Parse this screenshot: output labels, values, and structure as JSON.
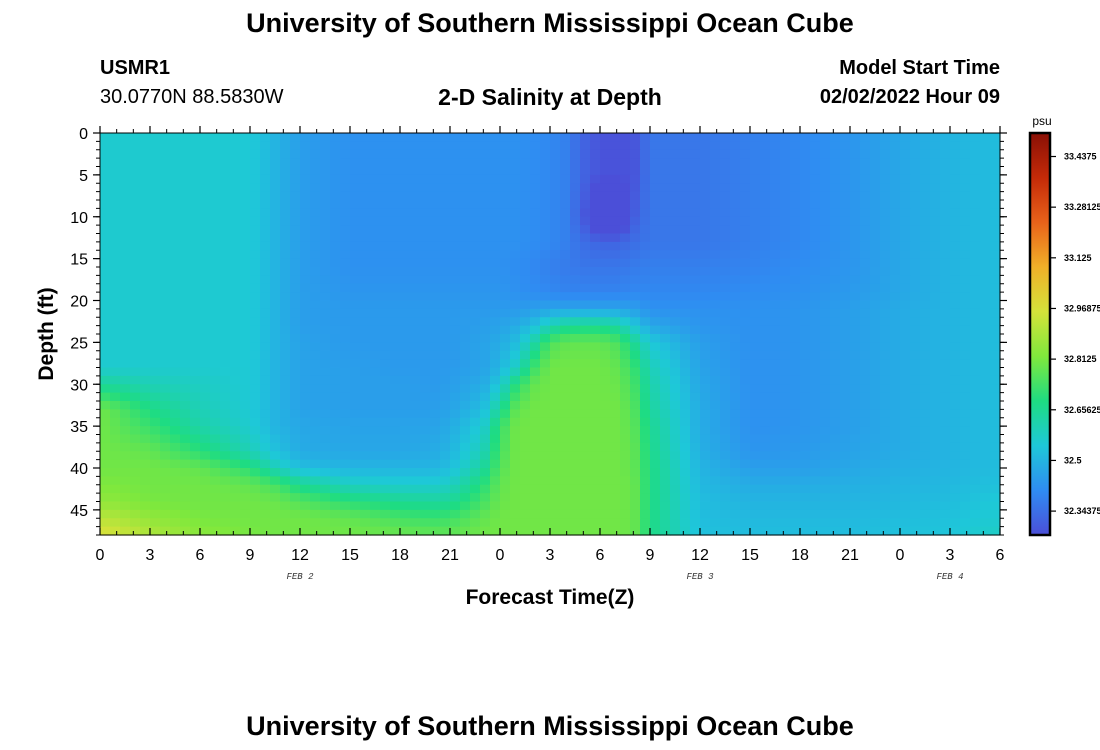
{
  "page_title": "University of Southern Mississippi Ocean Cube",
  "station": {
    "name": "USMR1",
    "coords": "30.0770N  88.5830W"
  },
  "model_start": {
    "label": "Model Start Time",
    "value": "02/02/2022 Hour 09"
  },
  "chart_data": {
    "type": "heatmap",
    "title": "2-D Salinity at Depth",
    "xlabel": "Forecast Time(Z)",
    "ylabel": "Depth (ft)",
    "x_tick_labels": [
      "0",
      "3",
      "6",
      "9",
      "12",
      "15",
      "18",
      "21",
      "0",
      "3",
      "6",
      "9",
      "12",
      "15",
      "18",
      "21",
      "0",
      "3",
      "6"
    ],
    "x_range_hours": [
      0,
      54
    ],
    "date_labels": [
      {
        "text": "FEB 2",
        "hour": 12
      },
      {
        "text": "FEB 3",
        "hour": 36
      },
      {
        "text": "FEB 4",
        "hour": 51
      }
    ],
    "y_ticks": [
      0,
      5,
      10,
      15,
      20,
      25,
      30,
      35,
      40,
      45
    ],
    "y_range": [
      0,
      48
    ],
    "y_inverted": true,
    "colorbar": {
      "unit": "psu",
      "range": [
        32.27,
        33.51
      ],
      "tick_values": [
        33.4375,
        33.28125,
        33.125,
        32.96875,
        32.8125,
        32.65625,
        32.5,
        32.34375
      ],
      "tick_labels": [
        "33.4375",
        "33.28125",
        "33.125",
        "32.96875",
        "32.8125",
        "32.65625",
        "32.5",
        "32.34375"
      ]
    },
    "palette": [
      "#4b4fd8",
      "#2f8cf2",
      "#1ec8d8",
      "#1edc82",
      "#80e83c",
      "#d4e23a",
      "#f0b028",
      "#e8621a",
      "#c42a08",
      "#8a1006"
    ],
    "anchors": {
      "hours": [
        0,
        3,
        6,
        9,
        10.5,
        12,
        15,
        18,
        20,
        21,
        23,
        24,
        25,
        26,
        27,
        28,
        29,
        30,
        31,
        32,
        33,
        36,
        39,
        42,
        45,
        48,
        51,
        54
      ],
      "depths": [
        0,
        5,
        10,
        13,
        16,
        19,
        21,
        23,
        25,
        28,
        30,
        33,
        35,
        38,
        40,
        42,
        44,
        46,
        48
      ],
      "salinity": [
        [
          32.56,
          32.56,
          32.56,
          32.55,
          32.5,
          32.45,
          32.42,
          32.42,
          32.42,
          32.42,
          32.42,
          32.42,
          32.42,
          32.41,
          32.4,
          32.38,
          32.32,
          32.28,
          32.28,
          32.28,
          32.36,
          32.36,
          32.38,
          32.4,
          32.43,
          32.47,
          32.5,
          32.52
        ],
        [
          32.56,
          32.56,
          32.56,
          32.55,
          32.5,
          32.45,
          32.42,
          32.42,
          32.42,
          32.42,
          32.42,
          32.42,
          32.42,
          32.41,
          32.4,
          32.38,
          32.32,
          32.28,
          32.28,
          32.28,
          32.36,
          32.36,
          32.38,
          32.4,
          32.43,
          32.47,
          32.5,
          32.52
        ],
        [
          32.56,
          32.56,
          32.56,
          32.55,
          32.5,
          32.45,
          32.42,
          32.42,
          32.42,
          32.42,
          32.42,
          32.42,
          32.42,
          32.41,
          32.4,
          32.38,
          32.3,
          32.15,
          32.15,
          32.3,
          32.36,
          32.36,
          32.38,
          32.4,
          32.43,
          32.47,
          32.5,
          32.52
        ],
        [
          32.56,
          32.56,
          32.56,
          32.55,
          32.5,
          32.45,
          32.42,
          32.42,
          32.42,
          32.42,
          32.42,
          32.42,
          32.42,
          32.41,
          32.4,
          32.38,
          32.34,
          32.32,
          32.32,
          32.34,
          32.36,
          32.36,
          32.38,
          32.4,
          32.43,
          32.47,
          32.5,
          32.52
        ],
        [
          32.56,
          32.56,
          32.56,
          32.55,
          32.5,
          32.45,
          32.42,
          32.42,
          32.42,
          32.42,
          32.42,
          32.42,
          32.41,
          32.4,
          32.38,
          32.37,
          32.36,
          32.36,
          32.36,
          32.37,
          32.38,
          32.38,
          32.39,
          32.41,
          32.43,
          32.47,
          32.5,
          32.52
        ],
        [
          32.56,
          32.56,
          32.56,
          32.55,
          32.5,
          32.45,
          32.43,
          32.43,
          32.43,
          32.43,
          32.43,
          32.43,
          32.42,
          32.41,
          32.4,
          32.39,
          32.39,
          32.39,
          32.39,
          32.4,
          32.4,
          32.4,
          32.41,
          32.42,
          32.44,
          32.47,
          32.5,
          32.52
        ],
        [
          32.56,
          32.56,
          32.56,
          32.55,
          32.5,
          32.45,
          32.44,
          32.44,
          32.44,
          32.44,
          32.44,
          32.44,
          32.44,
          32.45,
          32.46,
          32.46,
          32.46,
          32.46,
          32.46,
          32.45,
          32.42,
          32.42,
          32.42,
          32.43,
          32.45,
          32.48,
          32.5,
          32.52
        ],
        [
          32.56,
          32.56,
          32.56,
          32.55,
          32.5,
          32.45,
          32.44,
          32.44,
          32.44,
          32.44,
          32.45,
          32.46,
          32.48,
          32.52,
          32.6,
          32.65,
          32.66,
          32.66,
          32.63,
          32.55,
          32.47,
          32.43,
          32.42,
          32.43,
          32.45,
          32.48,
          32.5,
          32.52
        ],
        [
          32.56,
          32.56,
          32.56,
          32.55,
          32.5,
          32.46,
          32.44,
          32.44,
          32.44,
          32.44,
          32.46,
          32.48,
          32.52,
          32.62,
          32.75,
          32.78,
          32.78,
          32.78,
          32.75,
          32.66,
          32.55,
          32.45,
          32.42,
          32.43,
          32.45,
          32.48,
          32.5,
          32.52
        ],
        [
          32.56,
          32.56,
          32.56,
          32.55,
          32.5,
          32.46,
          32.45,
          32.44,
          32.44,
          32.44,
          32.46,
          32.5,
          32.58,
          32.72,
          32.8,
          32.8,
          32.8,
          32.8,
          32.78,
          32.72,
          32.6,
          32.46,
          32.42,
          32.43,
          32.45,
          32.48,
          32.5,
          32.52
        ],
        [
          32.65,
          32.6,
          32.58,
          32.55,
          32.5,
          32.46,
          32.45,
          32.45,
          32.44,
          32.45,
          32.48,
          32.55,
          32.7,
          32.78,
          32.8,
          32.8,
          32.8,
          32.8,
          32.79,
          32.74,
          32.62,
          32.47,
          32.42,
          32.43,
          32.45,
          32.48,
          32.5,
          32.52
        ],
        [
          32.8,
          32.68,
          32.6,
          32.55,
          32.5,
          32.46,
          32.45,
          32.45,
          32.45,
          32.46,
          32.52,
          32.65,
          32.78,
          32.8,
          32.8,
          32.8,
          32.8,
          32.8,
          32.8,
          32.76,
          32.64,
          32.48,
          32.42,
          32.43,
          32.45,
          32.48,
          32.5,
          32.52
        ],
        [
          32.8,
          32.72,
          32.62,
          32.56,
          32.5,
          32.47,
          32.46,
          32.46,
          32.46,
          32.48,
          32.56,
          32.72,
          32.8,
          32.8,
          32.8,
          32.8,
          32.8,
          32.8,
          32.8,
          32.77,
          32.66,
          32.48,
          32.42,
          32.43,
          32.45,
          32.48,
          32.5,
          32.52
        ],
        [
          32.8,
          32.78,
          32.7,
          32.6,
          32.53,
          32.48,
          32.47,
          32.47,
          32.48,
          32.5,
          32.6,
          32.74,
          32.8,
          32.8,
          32.8,
          32.8,
          32.8,
          32.8,
          32.8,
          32.78,
          32.67,
          32.49,
          32.43,
          32.44,
          32.46,
          32.48,
          32.5,
          32.52
        ],
        [
          32.8,
          32.8,
          32.78,
          32.7,
          32.6,
          32.52,
          32.5,
          32.5,
          32.5,
          32.52,
          32.64,
          32.76,
          32.8,
          32.8,
          32.8,
          32.8,
          32.8,
          32.8,
          32.8,
          32.78,
          32.68,
          32.5,
          32.45,
          32.45,
          32.47,
          32.49,
          32.5,
          32.52
        ],
        [
          32.82,
          32.8,
          32.8,
          32.78,
          32.74,
          32.66,
          32.58,
          32.56,
          32.56,
          32.58,
          32.7,
          32.78,
          32.8,
          32.8,
          32.8,
          32.8,
          32.8,
          32.8,
          32.8,
          32.79,
          32.68,
          32.51,
          32.48,
          32.48,
          32.49,
          32.5,
          32.51,
          32.53
        ],
        [
          32.85,
          32.81,
          32.8,
          32.8,
          32.79,
          32.76,
          32.7,
          32.66,
          32.64,
          32.65,
          32.74,
          32.79,
          32.8,
          32.8,
          32.8,
          32.8,
          32.8,
          32.8,
          32.8,
          32.79,
          32.68,
          32.52,
          32.5,
          32.5,
          32.5,
          32.51,
          32.52,
          32.55
        ],
        [
          32.92,
          32.85,
          32.81,
          32.8,
          32.8,
          32.8,
          32.78,
          32.74,
          32.72,
          32.73,
          32.78,
          32.8,
          32.8,
          32.8,
          32.8,
          32.8,
          32.8,
          32.8,
          32.8,
          32.79,
          32.68,
          32.52,
          32.51,
          32.51,
          32.51,
          32.52,
          32.53,
          32.56
        ],
        [
          32.98,
          32.9,
          32.84,
          32.81,
          32.8,
          32.8,
          32.8,
          32.79,
          32.78,
          32.78,
          32.8,
          32.8,
          32.8,
          32.8,
          32.8,
          32.8,
          32.8,
          32.8,
          32.8,
          32.79,
          32.68,
          32.53,
          32.52,
          32.52,
          32.52,
          32.53,
          32.54,
          32.58
        ]
      ]
    }
  }
}
